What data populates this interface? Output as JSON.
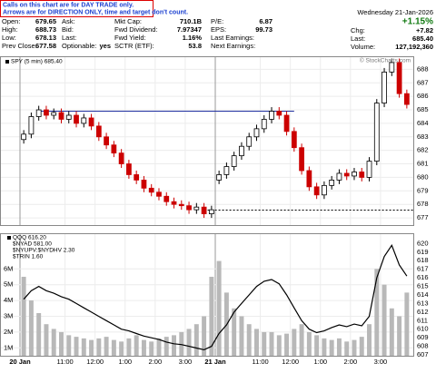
{
  "note": [
    "Calls on this chart are for DAY TRADE only.",
    "Arrows are for DIRECTION ONLY, time and target don't count."
  ],
  "quote": {
    "columns": [
      {
        "labels": [
          "Open:",
          "High:",
          "Low:",
          "Prev Close:"
        ],
        "values": [
          "679.65",
          "688.73",
          "678.13",
          "677.58"
        ]
      },
      {
        "labels": [
          "Ask:",
          "Bid:",
          "Last:",
          "Optionable:"
        ],
        "values": [
          null,
          null,
          null,
          "yes"
        ]
      },
      {
        "labels": [
          "Mkt Cap:",
          "Fwd Dividend:",
          "Fwd Yield:",
          "SCTR (ETF):"
        ],
        "values": [
          "710.1B",
          "7.97347",
          "1.16%",
          "53.8"
        ]
      },
      {
        "labels": [
          "P/E:",
          "EPS:",
          "Last Earnings:",
          "Next Earnings:"
        ],
        "values": [
          "6.87",
          "99.73",
          null,
          null
        ]
      }
    ],
    "date": "Wednesday 21-Jan-2026",
    "change_pct": "+1.15%",
    "right_labels": [
      "Chg:",
      "Last:",
      "Volume:"
    ],
    "right_values": [
      "+7.82",
      "685.40",
      "127,192,360"
    ]
  },
  "chart_data": [
    {
      "type": "candlestick",
      "legend": "SPY (5 min) 685.40",
      "watermark": "© StockCharts.com",
      "up_color": "#000000",
      "down_color": "#cc0000",
      "ylim": [
        676.4,
        688.9
      ],
      "yticks": [
        677,
        678,
        679,
        680,
        681,
        682,
        683,
        684,
        685,
        686,
        687,
        688
      ],
      "levels": [
        {
          "value": 684.9,
          "color": "#2030a0",
          "dashed": false
        },
        {
          "value": 677.58,
          "color": "#000000",
          "dashed": true
        }
      ],
      "open": [
        682.8,
        683.2,
        684.5,
        685.0,
        684.6,
        684.8,
        684.3,
        684.6,
        684.0,
        684.4,
        683.8,
        683.0,
        682.4,
        681.8,
        681.0,
        680.2,
        679.8,
        679.2,
        678.9,
        678.6,
        678.2,
        678.0,
        677.9,
        677.6,
        677.8,
        677.3,
        679.8,
        680.2,
        680.8,
        681.6,
        682.3,
        683.0,
        683.6,
        684.3,
        684.9,
        684.6,
        683.4,
        682.2,
        680.5,
        679.3,
        678.7,
        679.4,
        679.8,
        680.3,
        680.1,
        680.4,
        680.0,
        681.2,
        685.5,
        687.8,
        688.5,
        686.2
      ],
      "high": [
        683.5,
        684.8,
        685.3,
        685.3,
        685.1,
        685.1,
        684.9,
        684.9,
        684.7,
        684.7,
        684.1,
        683.3,
        682.7,
        682.1,
        681.3,
        680.5,
        680.1,
        679.5,
        679.2,
        678.9,
        678.5,
        678.3,
        678.2,
        678.1,
        678.1,
        677.9,
        680.5,
        681.1,
        681.9,
        682.6,
        683.3,
        683.9,
        684.6,
        685.2,
        685.2,
        684.9,
        683.7,
        682.5,
        680.8,
        679.6,
        679.7,
        680.1,
        680.6,
        680.6,
        680.7,
        680.7,
        681.5,
        685.8,
        688.1,
        688.8,
        688.8,
        686.5
      ],
      "low": [
        682.5,
        682.9,
        684.2,
        684.3,
        684.3,
        684.0,
        684.0,
        683.7,
        683.7,
        683.5,
        682.7,
        682.1,
        681.5,
        680.7,
        679.9,
        679.5,
        678.9,
        678.6,
        678.3,
        677.9,
        677.7,
        677.6,
        677.3,
        677.3,
        677.0,
        677.0,
        679.5,
        679.9,
        680.5,
        681.3,
        682.0,
        682.7,
        683.3,
        684.0,
        684.3,
        683.1,
        681.9,
        680.2,
        679.0,
        678.4,
        678.4,
        679.1,
        679.5,
        679.8,
        679.8,
        679.7,
        679.7,
        680.9,
        685.2,
        687.5,
        685.9,
        685.1
      ],
      "close": [
        683.2,
        684.5,
        685.0,
        684.6,
        684.8,
        684.3,
        684.6,
        684.0,
        684.4,
        683.8,
        683.0,
        682.4,
        681.8,
        681.0,
        680.2,
        679.8,
        679.2,
        678.9,
        678.6,
        678.2,
        678.0,
        677.9,
        677.6,
        677.8,
        677.3,
        677.6,
        680.2,
        680.8,
        681.6,
        682.3,
        683.0,
        683.6,
        684.3,
        684.9,
        684.6,
        683.4,
        682.2,
        680.5,
        679.3,
        678.7,
        679.4,
        679.8,
        680.3,
        680.1,
        680.4,
        680.0,
        681.2,
        685.5,
        687.8,
        688.5,
        686.2,
        685.4
      ],
      "xticks": [
        {
          "value": 0,
          "label": "20 Jan"
        },
        {
          "value": 6,
          "label": "11:00"
        },
        {
          "value": 10,
          "label": "12:00"
        },
        {
          "value": 14,
          "label": "1:00"
        },
        {
          "value": 18,
          "label": "2:00"
        },
        {
          "value": 22,
          "label": "3:00"
        },
        {
          "value": 26,
          "label": "21 Jan"
        },
        {
          "value": 32,
          "label": "11:00"
        },
        {
          "value": 36,
          "label": "12:00"
        },
        {
          "value": 40,
          "label": "1:00"
        },
        {
          "value": 44,
          "label": "2:00"
        },
        {
          "value": 48,
          "label": "3:00"
        }
      ]
    },
    {
      "type": "bar",
      "color": "#b8b8b8",
      "values": [
        5500000,
        4000000,
        3200000,
        2500000,
        2200000,
        2000000,
        1800000,
        1700000,
        1600000,
        1500000,
        1600000,
        1700000,
        1500000,
        1400000,
        1600000,
        1800000,
        1500000,
        1400000,
        1600000,
        1700000,
        1800000,
        2000000,
        2200000,
        2500000,
        3000000,
        5500000,
        6500000,
        4500000,
        3500000,
        3000000,
        2500000,
        2200000,
        2000000,
        2000000,
        1800000,
        1900000,
        2200000,
        2500000,
        2000000,
        1800000,
        1600000,
        1500000,
        1600000,
        1400000,
        1500000,
        1700000,
        2500000,
        6000000,
        5000000,
        3500000,
        3000000,
        4500000
      ],
      "ylim": [
        500000,
        8200000
      ],
      "yticks": [
        {
          "value": 1000000,
          "label": "1M"
        },
        {
          "value": 2000000,
          "label": "2M"
        },
        {
          "value": 3000000,
          "label": "3M"
        },
        {
          "value": 4000000,
          "label": "4M"
        },
        {
          "value": 5000000,
          "label": "5M"
        },
        {
          "value": 6000000,
          "label": "6M"
        }
      ],
      "y2lim": [
        606.9,
        621.1
      ],
      "y2ticks": [
        607,
        608,
        609,
        610,
        611,
        612,
        613,
        614,
        615,
        616,
        617,
        618,
        619,
        620
      ],
      "series": [
        {
          "name": "QQQ 616.20",
          "color": "#000000",
          "axis": "y2",
          "values": [
            613.5,
            614.5,
            615,
            614.5,
            614.2,
            613.8,
            613.5,
            613,
            612.5,
            612,
            611.5,
            611,
            610.5,
            610,
            609.8,
            609.5,
            609.2,
            609,
            608.8,
            608.5,
            608.3,
            608.2,
            608,
            607.8,
            607.6,
            608,
            609.5,
            610.5,
            612,
            613,
            614,
            615,
            615.6,
            615.8,
            615.3,
            614,
            612.5,
            611,
            610,
            609.6,
            609.8,
            610.2,
            610.5,
            610.3,
            610.6,
            610.4,
            611.5,
            616,
            618.5,
            619.8,
            617.5,
            616.2
          ]
        }
      ],
      "legend_extra": [
        "$NYAD 581.00",
        "$NYUPV:$NYDHV 2.30",
        "$TRIN 1.60"
      ]
    }
  ]
}
